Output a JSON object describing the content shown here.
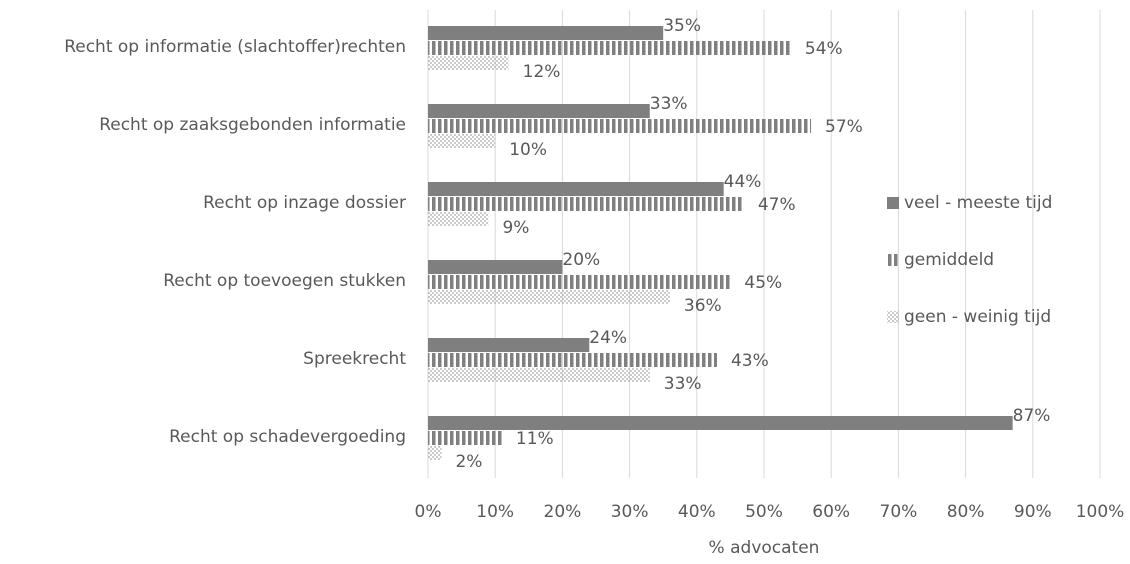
{
  "chart_data": {
    "type": "bar",
    "orientation": "horizontal",
    "xlabel": "% advocaten",
    "categories": [
      "Recht op informatie (slachtoffer)rechten",
      "Recht op zaaksgebonden informatie",
      "Recht op inzage dossier",
      "Recht op toevoegen stukken",
      "Spreekrecht",
      "Recht op schadevergoeding"
    ],
    "series": [
      {
        "name": "veel - meeste tijd",
        "color": "#7f7f7f",
        "pattern": "solid",
        "values": [
          35,
          33,
          44,
          20,
          24,
          87
        ],
        "value_labels": [
          "35%",
          "33%",
          "44%",
          "20%",
          "24%",
          "87%"
        ]
      },
      {
        "name": "gemiddeld",
        "color": "#7f7f7f",
        "pattern": "stripes",
        "values": [
          54,
          57,
          47,
          45,
          43,
          11
        ],
        "value_labels": [
          "54%",
          "57%",
          "47%",
          "45%",
          "43%",
          "11%"
        ]
      },
      {
        "name": "geen - weinig tijd",
        "color": "#a6a6a6",
        "pattern": "dots",
        "values": [
          12,
          10,
          9,
          36,
          33,
          2
        ],
        "value_labels": [
          "12%",
          "10%",
          "9%",
          "36%",
          "33%",
          "2%"
        ]
      }
    ],
    "xlim": [
      0,
      100
    ],
    "xticks": [
      {
        "value": 0,
        "label": "0%"
      },
      {
        "value": 10,
        "label": "10%"
      },
      {
        "value": 20,
        "label": "20%"
      },
      {
        "value": 30,
        "label": "30%"
      },
      {
        "value": 40,
        "label": "40%"
      },
      {
        "value": 50,
        "label": "50%"
      },
      {
        "value": 60,
        "label": "60%"
      },
      {
        "value": 70,
        "label": "70%"
      },
      {
        "value": 80,
        "label": "80%"
      },
      {
        "value": 90,
        "label": "90%"
      },
      {
        "value": 100,
        "label": "100%"
      }
    ],
    "grid": true,
    "legend": "right"
  }
}
